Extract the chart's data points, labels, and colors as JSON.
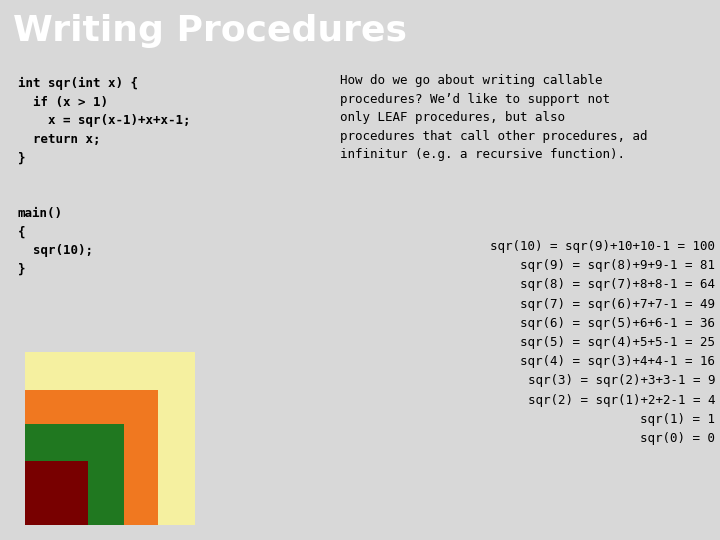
{
  "title": "Writing Procedures",
  "title_bg": "#000000",
  "title_fg": "#ffffff",
  "title_fontsize": 26,
  "bg_color": "#d8d8d8",
  "code_left": "int sqr(int x) {\n  if (x > 1)\n    x = sqr(x-1)+x+x-1;\n  return x;\n}\n\n\nmain()\n{\n  sqr(10);\n}",
  "desc_text": "How do we go about writing callable\nprocedures? We’d like to support not\nonly LEAF procedures, but also\nprocedures that call other procedures, ad\ninfinitur (e.g. a recursive function).",
  "sqr_lines": [
    "sqr(10) = sqr(9)+10+10-1 = 100",
    "      sqr(9) = sqr(8)+9+9-1 = 81",
    "      sqr(8) = sqr(7)+8+8-1 = 64",
    "      sqr(7) = sqr(6)+7+7-1 = 49",
    "      sqr(6) = sqr(5)+6+6-1 = 36",
    "      sqr(5) = sqr(4)+5+5-1 = 25",
    "      sqr(4) = sqr(3)+4+4-1 = 16",
    "        sqr(3) = sqr(2)+3+3-1 = 9",
    "        sqr(2) = sqr(1)+2+2-1 = 4",
    "                        sqr(1) = 1",
    "                        sqr(0) = 0"
  ],
  "square_colors": [
    "#f5f0a0",
    "#f07820",
    "#207820",
    "#780000"
  ],
  "square_sizes": [
    1.0,
    0.78,
    0.58,
    0.37
  ]
}
